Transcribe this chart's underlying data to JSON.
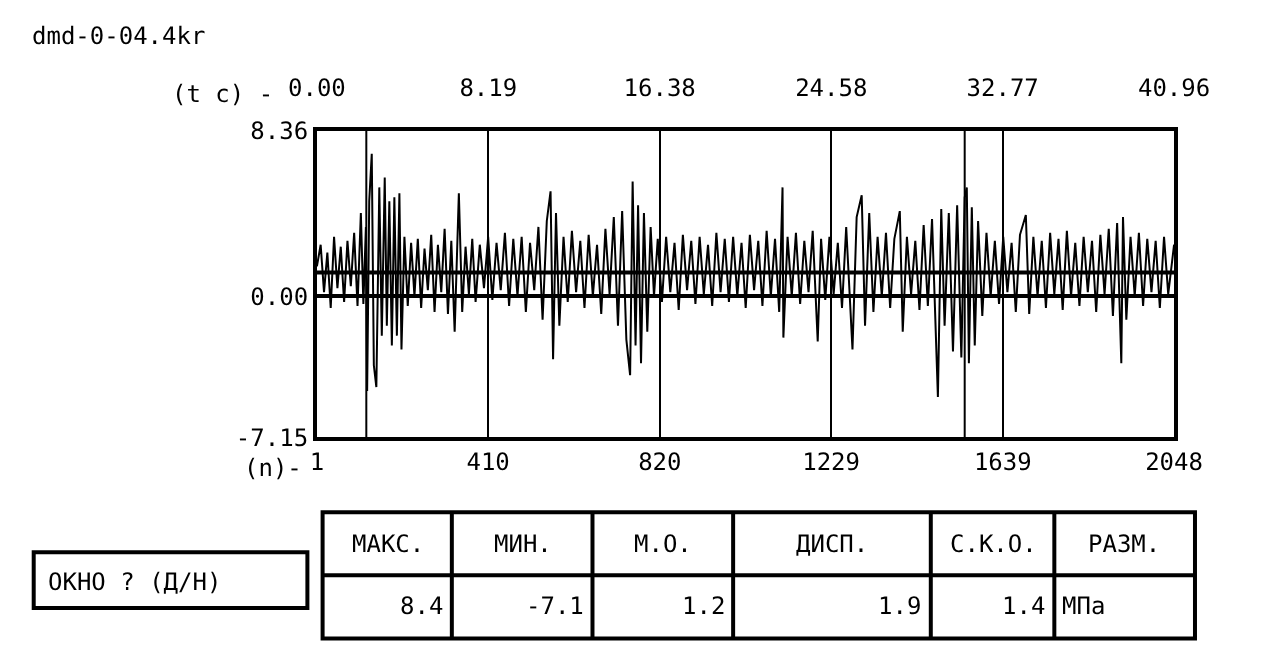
{
  "chart_data": {
    "type": "line",
    "title": "dmd-0-04.4kr",
    "xlabel": "(n)-",
    "x2label": "(t c) -",
    "xlim": [
      1,
      2048
    ],
    "xticks": [
      1,
      410,
      820,
      1229,
      1639,
      2048
    ],
    "x2lim": [
      0,
      40.96
    ],
    "x2ticks": [
      {
        "value": 0,
        "label": "0.00"
      },
      8.19,
      16.38,
      24.58,
      32.77,
      40.96
    ],
    "ylim": [
      -7.15,
      8.36
    ],
    "yticks": [
      8.36,
      {
        "value": 0,
        "label": "0.00"
      },
      -7.15
    ],
    "grid": "x",
    "marker": "none",
    "line_style": "solid",
    "ref_lines": [
      {
        "axis": "y",
        "value": 0,
        "label": null,
        "color": "#000000"
      },
      {
        "axis": "y",
        "value": 1.2,
        "label": null,
        "color": "#000000"
      },
      {
        "axis": "x",
        "value": 119,
        "label": null,
        "color": "#000000"
      },
      {
        "axis": "x",
        "value": 1548,
        "label": null,
        "color": "#000000"
      }
    ],
    "annotations": [
      "ОКНО ? (Д/Н)",
      "МАКС.",
      "МИН.",
      "М.О.",
      "ДИСП.",
      "С.К.О.",
      "РАЗМ.",
      "8.4",
      "-7.1",
      "1.2",
      "1.9",
      "1.4",
      "МПа"
    ],
    "series": [
      {
        "color": "#000000",
        "x": [
          1,
          10,
          18,
          26,
          34,
          42,
          50,
          58,
          66,
          74,
          82,
          90,
          98,
          106,
          112,
          118,
          121,
          126,
          132,
          137,
          143,
          150,
          156,
          163,
          168,
          174,
          180,
          186,
          192,
          198,
          203,
          210,
          218,
          226,
          234,
          242,
          250,
          258,
          266,
          274,
          282,
          290,
          298,
          306,
          314,
          322,
          330,
          340,
          348,
          356,
          364,
          372,
          380,
          390,
          400,
          410,
          420,
          430,
          440,
          450,
          460,
          470,
          480,
          490,
          500,
          510,
          520,
          530,
          540,
          550,
          559,
          565,
          572,
          580,
          590,
          600,
          610,
          620,
          630,
          640,
          650,
          660,
          670,
          680,
          690,
          700,
          710,
          720,
          730,
          740,
          749,
          755,
          762,
          768,
          775,
          782,
          790,
          798,
          806,
          815,
          825,
          835,
          845,
          855,
          865,
          875,
          885,
          895,
          905,
          915,
          925,
          935,
          945,
          955,
          965,
          975,
          985,
          995,
          1005,
          1015,
          1025,
          1035,
          1045,
          1055,
          1065,
          1075,
          1085,
          1095,
          1105,
          1113,
          1115,
          1125,
          1135,
          1145,
          1155,
          1165,
          1175,
          1185,
          1197,
          1205,
          1215,
          1225,
          1235,
          1245,
          1255,
          1265,
          1280,
          1290,
          1302,
          1310,
          1320,
          1330,
          1340,
          1350,
          1360,
          1370,
          1380,
          1393,
          1400,
          1410,
          1420,
          1430,
          1440,
          1450,
          1460,
          1470,
          1484,
          1492,
          1500,
          1510,
          1520,
          1530,
          1540,
          1548,
          1553,
          1558,
          1565,
          1572,
          1580,
          1590,
          1600,
          1610,
          1620,
          1630,
          1640,
          1650,
          1660,
          1670,
          1680,
          1694,
          1702,
          1712,
          1722,
          1732,
          1742,
          1752,
          1762,
          1772,
          1782,
          1792,
          1802,
          1812,
          1822,
          1832,
          1842,
          1852,
          1862,
          1872,
          1882,
          1892,
          1902,
          1912,
          1922,
          1926,
          1934,
          1944,
          1954,
          1964,
          1974,
          1984,
          1994,
          2004,
          2014,
          2024,
          2034,
          2048
        ],
        "values": [
          1.5,
          2.6,
          0.2,
          2.2,
          -0.6,
          3.0,
          0.4,
          2.5,
          -0.3,
          2.8,
          0.5,
          3.2,
          -0.5,
          4.2,
          -0.4,
          3.5,
          -4.8,
          4.8,
          7.2,
          -3.5,
          -4.6,
          5.5,
          -2.0,
          6.0,
          -1.5,
          4.8,
          -2.5,
          5.0,
          -2.0,
          5.2,
          -2.7,
          3.0,
          -0.5,
          2.7,
          0.0,
          2.9,
          -0.6,
          2.4,
          0.3,
          3.1,
          -0.8,
          2.6,
          0.2,
          3.4,
          -0.9,
          2.8,
          -1.8,
          5.2,
          -0.8,
          2.5,
          0.1,
          2.9,
          -0.3,
          2.6,
          0.4,
          3.0,
          -0.2,
          2.7,
          0.3,
          3.2,
          -0.5,
          2.9,
          0.0,
          3.0,
          -0.8,
          2.7,
          0.3,
          3.5,
          -1.2,
          3.8,
          5.3,
          -3.2,
          4.2,
          -1.5,
          3.0,
          -0.3,
          3.3,
          0.2,
          2.8,
          -0.6,
          3.1,
          0.0,
          2.6,
          -0.9,
          3.4,
          0.1,
          4.0,
          -1.5,
          4.3,
          -2.2,
          -4.0,
          5.8,
          -2.5,
          4.6,
          -3.4,
          4.2,
          -1.8,
          3.5,
          0.0,
          2.9,
          -0.3,
          3.0,
          0.2,
          2.7,
          -0.7,
          3.1,
          0.3,
          2.8,
          -0.4,
          3.0,
          0.1,
          2.6,
          -0.5,
          3.2,
          0.2,
          2.9,
          -0.3,
          3.0,
          0.0,
          2.7,
          -0.6,
          3.1,
          0.3,
          2.8,
          -0.5,
          3.3,
          0.0,
          2.9,
          -0.8,
          5.5,
          -2.1,
          3.0,
          0.0,
          3.2,
          -0.4,
          2.8,
          0.2,
          3.3,
          -2.3,
          2.9,
          -0.2,
          3.0,
          0.1,
          2.7,
          -0.6,
          3.5,
          -2.7,
          4.0,
          5.1,
          -1.5,
          4.2,
          -0.8,
          3.0,
          0.0,
          3.2,
          -0.6,
          2.9,
          4.3,
          -1.8,
          3.0,
          0.1,
          2.8,
          -0.7,
          3.6,
          -0.5,
          3.9,
          -5.1,
          4.4,
          -1.5,
          4.2,
          -2.8,
          4.6,
          -3.1,
          5.0,
          5.5,
          -3.4,
          4.5,
          -2.5,
          3.8,
          -1.0,
          3.2,
          0.0,
          2.8,
          -0.4,
          3.0,
          0.2,
          2.7,
          -0.8,
          3.1,
          4.1,
          -0.9,
          3.0,
          0.0,
          2.8,
          -0.6,
          3.2,
          0.1,
          2.9,
          -0.7,
          3.3,
          0.0,
          2.7,
          -0.5,
          3.0,
          0.2,
          2.8,
          -0.8,
          3.1,
          0.1,
          3.4,
          -1.0,
          3.7,
          -3.4,
          4.0,
          -1.2,
          3.0,
          0.0,
          3.2,
          -0.5,
          2.9,
          0.2,
          2.8,
          -0.6,
          3.0,
          0.1,
          2.6
        ]
      }
    ]
  }
}
